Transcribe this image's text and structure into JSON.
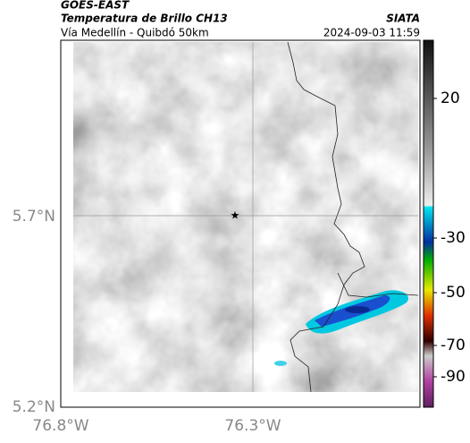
{
  "header": {
    "source": "GOES-EAST",
    "product": "Temperatura de Brillo CH13",
    "region": "Vía Medellín - Quibdó 50km",
    "agency": "SIATA",
    "timestamp": "2024-09-03 11:59"
  },
  "axes": {
    "lat_ticks": [
      "5.7°N",
      "5.2°N"
    ],
    "lon_ticks": [
      "76.8°W",
      "76.3°W"
    ]
  },
  "colorbar": {
    "ticks": [
      "20",
      "-30",
      "-50",
      "-70",
      "-90"
    ]
  }
}
